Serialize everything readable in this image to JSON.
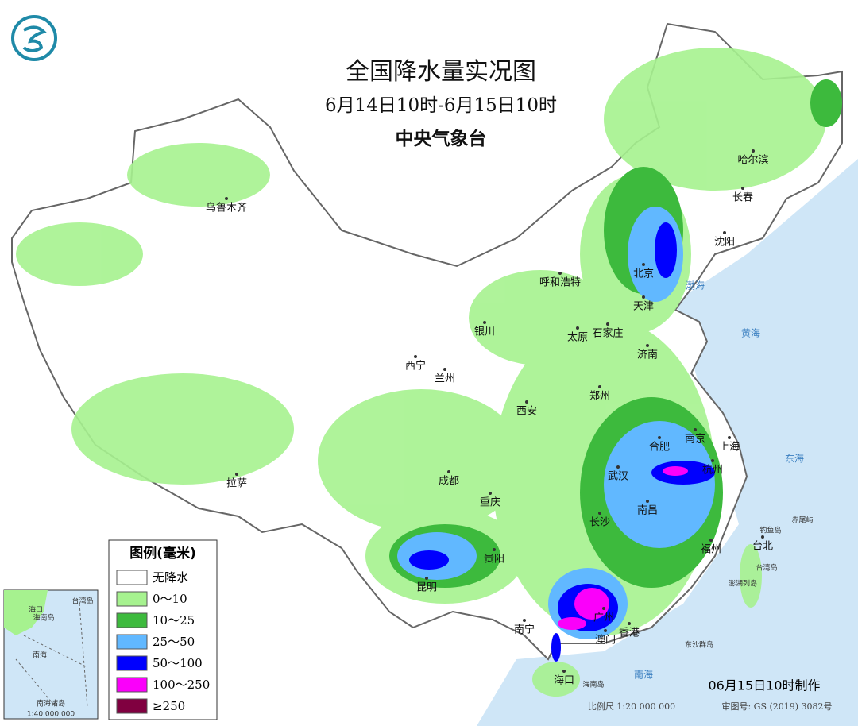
{
  "header": {
    "title": "全国降水量实况图",
    "subtitle": "6月14日10时-6月15日10时",
    "agency": "中央气象台"
  },
  "cities": [
    "乌鲁木齐",
    "哈尔滨",
    "长春",
    "沈阳",
    "呼和浩特",
    "北京",
    "天津",
    "银川",
    "太原",
    "石家庄",
    "济南",
    "西宁",
    "兰州",
    "郑州",
    "西安",
    "南京",
    "合肥",
    "上海",
    "武汉",
    "杭州",
    "拉萨",
    "成都",
    "重庆",
    "南昌",
    "长沙",
    "福州",
    "台北",
    "贵阳",
    "昆明",
    "南宁",
    "广州",
    "香港",
    "澳门",
    "海口"
  ],
  "seas": [
    "渤海",
    "黄海",
    "东海",
    "南海",
    "台湾岛",
    "海南岛",
    "钓鱼岛",
    "赤尾屿",
    "澎湖列岛",
    "东沙群岛"
  ],
  "legend": {
    "title": "图例(毫米)",
    "items": [
      {
        "label": "无降水",
        "color": "#ffffff"
      },
      {
        "label": "0～10",
        "color": "#a6f28f"
      },
      {
        "label": "10～25",
        "color": "#3dba3d"
      },
      {
        "label": "25～50",
        "color": "#61b8ff"
      },
      {
        "label": "50～100",
        "color": "#0000fe"
      },
      {
        "label": "100～250",
        "color": "#fa00fa"
      },
      {
        "label": "≥250",
        "color": "#800040"
      }
    ]
  },
  "inset": {
    "title": "南海诸岛",
    "scale": "1:40 000 000",
    "labels": [
      "南海",
      "海南岛",
      "台湾岛",
      "海口"
    ]
  },
  "footer": {
    "made": "06月15日10时制作",
    "scale": "比例尺 1:20 000 000",
    "review": "审图号: GS (2019) 3082号"
  }
}
